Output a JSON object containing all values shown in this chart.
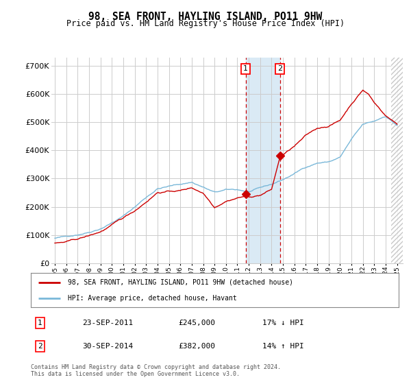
{
  "title": "98, SEA FRONT, HAYLING ISLAND, PO11 9HW",
  "subtitle": "Price paid vs. HM Land Registry's House Price Index (HPI)",
  "ylim": [
    0,
    730000
  ],
  "yticks": [
    0,
    100000,
    200000,
    300000,
    400000,
    500000,
    600000,
    700000
  ],
  "ytick_labels": [
    "£0",
    "£100K",
    "£200K",
    "£300K",
    "£400K",
    "£500K",
    "£600K",
    "£700K"
  ],
  "hpi_color": "#7ab8d9",
  "price_color": "#cc0000",
  "grid_color": "#cccccc",
  "shade_color": "#daeaf5",
  "marker1_x": 2011.73,
  "marker2_x": 2014.73,
  "marker1_price": 245000,
  "marker2_price": 382000,
  "legend_line1": "98, SEA FRONT, HAYLING ISLAND, PO11 9HW (detached house)",
  "legend_line2": "HPI: Average price, detached house, Havant",
  "table_row1": [
    "1",
    "23-SEP-2011",
    "£245,000",
    "17% ↓ HPI"
  ],
  "table_row2": [
    "2",
    "30-SEP-2014",
    "£382,000",
    "14% ↑ HPI"
  ],
  "footnote": "Contains HM Land Registry data © Crown copyright and database right 2024.\nThis data is licensed under the Open Government Licence v3.0.",
  "xmin": 1994.7,
  "xmax": 2025.5,
  "hatch_start": 2024.5
}
